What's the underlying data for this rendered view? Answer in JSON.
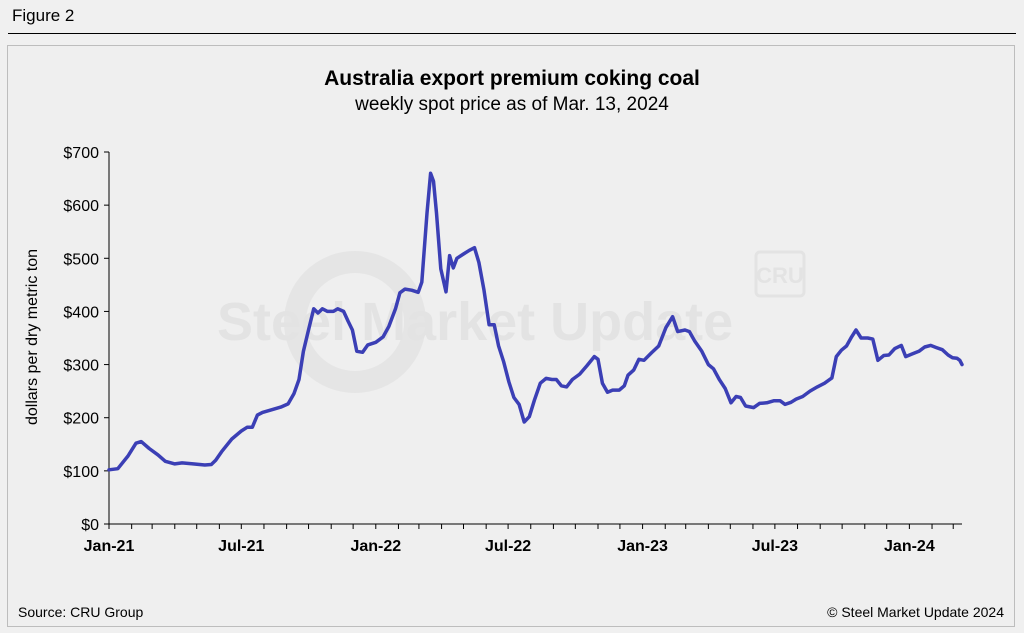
{
  "figure_label": "Figure 2",
  "footer": {
    "source": "Source: CRU Group",
    "copyright": "© Steel Market Update 2024"
  },
  "watermark": {
    "text": "Steel Market Update",
    "badge": "CRU"
  },
  "colors": {
    "line": "#3b3fb5",
    "axis": "#000000",
    "background": "#efefef"
  },
  "chart_data": {
    "type": "line",
    "title": "Australia export premium coking coal",
    "subtitle": "weekly spot price as of Mar. 13, 2024",
    "ylabel": "dollars per dry metric ton",
    "xlabel": "",
    "ylim": [
      0,
      700
    ],
    "xlim": [
      "2021-01-01",
      "2024-03-13"
    ],
    "grid": false,
    "y_ticks": [
      {
        "value": 0,
        "label": "$0"
      },
      {
        "value": 100,
        "label": "$100"
      },
      {
        "value": 200,
        "label": "$200"
      },
      {
        "value": 300,
        "label": "$300"
      },
      {
        "value": 400,
        "label": "$400"
      },
      {
        "value": 500,
        "label": "$500"
      },
      {
        "value": 600,
        "label": "$600"
      },
      {
        "value": 700,
        "label": "$700"
      }
    ],
    "x_ticks": [
      {
        "date": "2021-01-01",
        "label": "Jan-21"
      },
      {
        "date": "2021-07-01",
        "label": "Jul-21"
      },
      {
        "date": "2022-01-01",
        "label": "Jan-22"
      },
      {
        "date": "2022-07-01",
        "label": "Jul-22"
      },
      {
        "date": "2023-01-01",
        "label": "Jan-23"
      },
      {
        "date": "2023-07-01",
        "label": "Jul-23"
      },
      {
        "date": "2024-01-01",
        "label": "Jan-24"
      }
    ],
    "series": [
      {
        "name": "",
        "points": [
          [
            "2021-01-01",
            102
          ],
          [
            "2021-01-13",
            104
          ],
          [
            "2021-01-27",
            128
          ],
          [
            "2021-02-07",
            152
          ],
          [
            "2021-02-14",
            155
          ],
          [
            "2021-02-25",
            142
          ],
          [
            "2021-03-09",
            130
          ],
          [
            "2021-03-19",
            118
          ],
          [
            "2021-04-01",
            113
          ],
          [
            "2021-04-11",
            115
          ],
          [
            "2021-04-26",
            113
          ],
          [
            "2021-05-12",
            111
          ],
          [
            "2021-05-21",
            112
          ],
          [
            "2021-05-27",
            120
          ],
          [
            "2021-06-04",
            136
          ],
          [
            "2021-06-18",
            160
          ],
          [
            "2021-07-01",
            175
          ],
          [
            "2021-07-09",
            182
          ],
          [
            "2021-07-16",
            182
          ],
          [
            "2021-07-23",
            205
          ],
          [
            "2021-07-30",
            210
          ],
          [
            "2021-08-09",
            214
          ],
          [
            "2021-08-24",
            220
          ],
          [
            "2021-09-03",
            226
          ],
          [
            "2021-09-11",
            245
          ],
          [
            "2021-09-18",
            272
          ],
          [
            "2021-09-24",
            325
          ],
          [
            "2021-10-01",
            365
          ],
          [
            "2021-10-08",
            405
          ],
          [
            "2021-10-14",
            397
          ],
          [
            "2021-10-20",
            405
          ],
          [
            "2021-10-27",
            400
          ],
          [
            "2021-11-04",
            400
          ],
          [
            "2021-11-10",
            405
          ],
          [
            "2021-11-18",
            400
          ],
          [
            "2021-11-24",
            382
          ],
          [
            "2021-11-30",
            365
          ],
          [
            "2021-12-06",
            325
          ],
          [
            "2021-12-14",
            323
          ],
          [
            "2021-12-21",
            337
          ],
          [
            "2022-01-01",
            342
          ],
          [
            "2022-01-11",
            352
          ],
          [
            "2022-01-19",
            372
          ],
          [
            "2022-01-28",
            405
          ],
          [
            "2022-02-03",
            435
          ],
          [
            "2022-02-10",
            442
          ],
          [
            "2022-02-19",
            440
          ],
          [
            "2022-02-28",
            436
          ],
          [
            "2022-03-05",
            455
          ],
          [
            "2022-03-12",
            585
          ],
          [
            "2022-03-17",
            660
          ],
          [
            "2022-03-21",
            645
          ],
          [
            "2022-03-25",
            585
          ],
          [
            "2022-03-31",
            480
          ],
          [
            "2022-04-07",
            437
          ],
          [
            "2022-04-12",
            505
          ],
          [
            "2022-04-17",
            482
          ],
          [
            "2022-04-22",
            500
          ],
          [
            "2022-05-01",
            508
          ],
          [
            "2022-05-09",
            515
          ],
          [
            "2022-05-16",
            520
          ],
          [
            "2022-05-22",
            492
          ],
          [
            "2022-05-29",
            440
          ],
          [
            "2022-06-05",
            375
          ],
          [
            "2022-06-12",
            375
          ],
          [
            "2022-06-18",
            335
          ],
          [
            "2022-06-25",
            305
          ],
          [
            "2022-07-02",
            268
          ],
          [
            "2022-07-09",
            238
          ],
          [
            "2022-07-16",
            225
          ],
          [
            "2022-07-23",
            192
          ],
          [
            "2022-07-30",
            202
          ],
          [
            "2022-08-06",
            233
          ],
          [
            "2022-08-14",
            265
          ],
          [
            "2022-08-22",
            274
          ],
          [
            "2022-08-30",
            272
          ],
          [
            "2022-09-05",
            272
          ],
          [
            "2022-09-12",
            260
          ],
          [
            "2022-09-19",
            258
          ],
          [
            "2022-09-27",
            272
          ],
          [
            "2022-10-07",
            282
          ],
          [
            "2022-10-17",
            298
          ],
          [
            "2022-10-27",
            315
          ],
          [
            "2022-11-01",
            310
          ],
          [
            "2022-11-07",
            265
          ],
          [
            "2022-11-14",
            248
          ],
          [
            "2022-11-21",
            252
          ],
          [
            "2022-11-30",
            252
          ],
          [
            "2022-12-07",
            260
          ],
          [
            "2022-12-12",
            280
          ],
          [
            "2022-12-20",
            290
          ],
          [
            "2022-12-27",
            310
          ],
          [
            "2023-01-03",
            308
          ],
          [
            "2023-01-13",
            322
          ],
          [
            "2023-01-23",
            335
          ],
          [
            "2023-02-02",
            370
          ],
          [
            "2023-02-11",
            390
          ],
          [
            "2023-02-18",
            362
          ],
          [
            "2023-02-28",
            365
          ],
          [
            "2023-03-06",
            362
          ],
          [
            "2023-03-13",
            345
          ],
          [
            "2023-03-23",
            325
          ],
          [
            "2023-04-01",
            300
          ],
          [
            "2023-04-08",
            292
          ],
          [
            "2023-04-16",
            272
          ],
          [
            "2023-04-24",
            255
          ],
          [
            "2023-05-02",
            228
          ],
          [
            "2023-05-09",
            240
          ],
          [
            "2023-05-15",
            238
          ],
          [
            "2023-05-22",
            222
          ],
          [
            "2023-06-02",
            219
          ],
          [
            "2023-06-10",
            227
          ],
          [
            "2023-06-20",
            228
          ],
          [
            "2023-06-30",
            232
          ],
          [
            "2023-07-08",
            232
          ],
          [
            "2023-07-15",
            225
          ],
          [
            "2023-07-23",
            229
          ],
          [
            "2023-07-30",
            235
          ],
          [
            "2023-08-08",
            240
          ],
          [
            "2023-08-18",
            250
          ],
          [
            "2023-08-28",
            258
          ],
          [
            "2023-09-07",
            265
          ],
          [
            "2023-09-17",
            275
          ],
          [
            "2023-09-23",
            315
          ],
          [
            "2023-09-30",
            327
          ],
          [
            "2023-10-07",
            335
          ],
          [
            "2023-10-14",
            352
          ],
          [
            "2023-10-20",
            365
          ],
          [
            "2023-10-27",
            350
          ],
          [
            "2023-11-05",
            350
          ],
          [
            "2023-11-12",
            348
          ],
          [
            "2023-11-19",
            308
          ],
          [
            "2023-11-27",
            317
          ],
          [
            "2023-12-04",
            318
          ],
          [
            "2023-12-12",
            330
          ],
          [
            "2023-12-21",
            336
          ],
          [
            "2023-12-27",
            315
          ],
          [
            "2024-01-05",
            320
          ],
          [
            "2024-01-14",
            325
          ],
          [
            "2024-01-22",
            333
          ],
          [
            "2024-01-30",
            336
          ],
          [
            "2024-02-07",
            332
          ],
          [
            "2024-02-15",
            328
          ],
          [
            "2024-02-23",
            318
          ],
          [
            "2024-02-29",
            313
          ],
          [
            "2024-03-06",
            312
          ],
          [
            "2024-03-10",
            308
          ],
          [
            "2024-03-13",
            300
          ]
        ]
      }
    ]
  }
}
